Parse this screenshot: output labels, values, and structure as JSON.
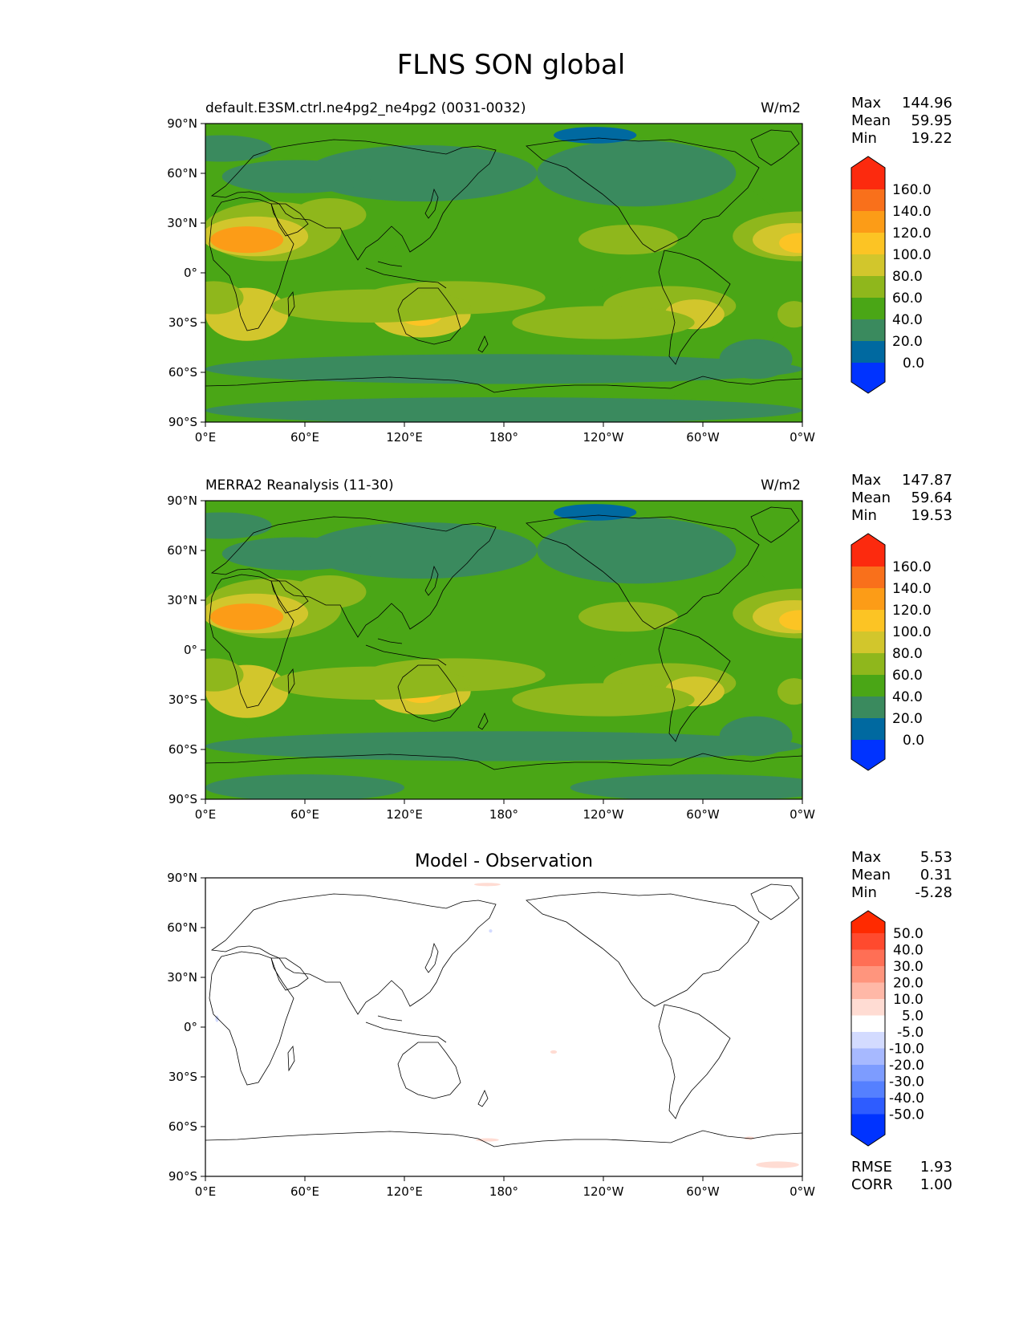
{
  "title": "FLNS SON global",
  "colors": {
    "main_levels": [
      "#0033ff",
      "#0069a0",
      "#3a8a5e",
      "#4aa616",
      "#8fb71c",
      "#d2c62c",
      "#fcc424",
      "#fc9c17",
      "#f9701b",
      "#fc2a0e"
    ],
    "diff_levels": [
      "#0033ff",
      "#2e5cff",
      "#5580ff",
      "#7d9cff",
      "#a7b9ff",
      "#d3dbff",
      "#ffffff",
      "#ffdcd3",
      "#ffb8a7",
      "#ff957d",
      "#ff6f55",
      "#ff4a2e",
      "#ff2a00"
    ],
    "coast": "#000000"
  },
  "x_ticks": [
    "0°E",
    "60°E",
    "120°E",
    "180°",
    "120°W",
    "60°W",
    "0°W"
  ],
  "y_ticks": [
    "90°N",
    "60°N",
    "30°N",
    "0°",
    "30°S",
    "60°S",
    "90°S"
  ],
  "panels": {
    "test": {
      "left_title": "default.E3SM.ctrl.ne4pg2_ne4pg2 (0031-0032)",
      "units": "W/m2",
      "stats": {
        "max_label": "Max",
        "max": "144.96",
        "mean_label": "Mean",
        "mean": "59.95",
        "min_label": "Min",
        "min": "19.22"
      },
      "cbar_labels": [
        "160.0",
        "140.0",
        "120.0",
        "100.0",
        "80.0",
        "60.0",
        "40.0",
        "20.0",
        "0.0"
      ]
    },
    "ref": {
      "left_title": "MERRA2 Reanalysis (11-30)",
      "units": "W/m2",
      "stats": {
        "max_label": "Max",
        "max": "147.87",
        "mean_label": "Mean",
        "mean": "59.64",
        "min_label": "Min",
        "min": "19.53"
      },
      "cbar_labels": [
        "160.0",
        "140.0",
        "120.0",
        "100.0",
        "80.0",
        "60.0",
        "40.0",
        "20.0",
        "0.0"
      ]
    },
    "diff": {
      "center_title": "Model - Observation",
      "stats": {
        "max_label": "Max",
        "max": "5.53",
        "mean_label": "Mean",
        "mean": "0.31",
        "min_label": "Min",
        "min": "-5.28"
      },
      "cbar_labels": [
        "50.0",
        "40.0",
        "30.0",
        "20.0",
        "10.0",
        "5.0",
        "-5.0",
        "-10.0",
        "-20.0",
        "-30.0",
        "-40.0",
        "-50.0"
      ],
      "rmse_label": "RMSE",
      "rmse": "1.93",
      "corr_label": "CORR",
      "corr": "1.00"
    }
  },
  "chart_data": [
    {
      "type": "heatmap",
      "panel": "test",
      "title": "default.E3SM.ctrl.ne4pg2_ne4pg2 (0031-0032)",
      "variable": "FLNS",
      "season": "SON",
      "units": "W/m2",
      "xlim": [
        0,
        360
      ],
      "ylim": [
        -90,
        90
      ],
      "contour_levels": [
        0,
        20,
        40,
        60,
        80,
        100,
        120,
        140,
        160
      ],
      "blobs": [
        {
          "lon": 180,
          "lat": 0,
          "rlon": 180,
          "rlat": 90,
          "value": 50
        },
        {
          "lon": 180,
          "lat": 5,
          "rlon": 75,
          "rlat": 22,
          "value": 50
        },
        {
          "lon": 130,
          "lat": 60,
          "rlon": 70,
          "rlat": 17,
          "value": 35
        },
        {
          "lon": 55,
          "lat": 58,
          "rlon": 45,
          "rlat": 10,
          "value": 35
        },
        {
          "lon": 10,
          "lat": 75,
          "rlon": 30,
          "rlat": 8,
          "value": 35
        },
        {
          "lon": 260,
          "lat": 60,
          "rlon": 60,
          "rlat": 20,
          "value": 35
        },
        {
          "lon": 180,
          "lat": -58,
          "rlon": 180,
          "rlat": 9,
          "value": 35
        },
        {
          "lon": 180,
          "lat": -83,
          "rlon": 180,
          "rlat": 8,
          "value": 35
        },
        {
          "lon": 332,
          "lat": -52,
          "rlon": 22,
          "rlat": 12,
          "value": 30
        },
        {
          "lon": 235,
          "lat": 83,
          "rlon": 25,
          "rlat": 5,
          "value": 18
        },
        {
          "lon": 40,
          "lat": 25,
          "rlon": 42,
          "rlat": 18,
          "value": 78
        },
        {
          "lon": 30,
          "lat": 22,
          "rlon": 32,
          "rlat": 12,
          "value": 98
        },
        {
          "lon": 25,
          "lat": 20,
          "rlon": 22,
          "rlat": 8,
          "value": 125
        },
        {
          "lon": 360,
          "lat": 22,
          "rlon": 42,
          "rlat": 15,
          "value": 72
        },
        {
          "lon": 355,
          "lat": 20,
          "rlon": 25,
          "rlat": 10,
          "value": 90
        },
        {
          "lon": 358,
          "lat": 18,
          "rlon": 12,
          "rlat": 6,
          "value": 105
        },
        {
          "lon": 75,
          "lat": 35,
          "rlon": 22,
          "rlat": 10,
          "value": 68
        },
        {
          "lon": 255,
          "lat": 20,
          "rlon": 30,
          "rlat": 9,
          "value": 68
        },
        {
          "lon": 25,
          "lat": -25,
          "rlon": 25,
          "rlat": 16,
          "value": 80
        },
        {
          "lon": 5,
          "lat": -15,
          "rlon": 18,
          "rlat": 10,
          "value": 70
        },
        {
          "lon": 130,
          "lat": -25,
          "rlon": 30,
          "rlat": 14,
          "value": 85
        },
        {
          "lon": 130,
          "lat": -25,
          "rlon": 13,
          "rlat": 7,
          "value": 100
        },
        {
          "lon": 150,
          "lat": -15,
          "rlon": 55,
          "rlat": 10,
          "value": 64
        },
        {
          "lon": 100,
          "lat": -20,
          "rlon": 60,
          "rlat": 10,
          "value": 62
        },
        {
          "lon": 280,
          "lat": -20,
          "rlon": 40,
          "rlat": 12,
          "value": 64
        },
        {
          "lon": 295,
          "lat": -25,
          "rlon": 18,
          "rlat": 9,
          "value": 84
        },
        {
          "lon": 240,
          "lat": -30,
          "rlon": 55,
          "rlat": 10,
          "value": 62
        },
        {
          "lon": 355,
          "lat": -25,
          "rlon": 10,
          "rlat": 8,
          "value": 78
        }
      ]
    },
    {
      "type": "heatmap",
      "panel": "ref",
      "title": "MERRA2 Reanalysis (11-30)",
      "variable": "FLNS",
      "season": "SON",
      "units": "W/m2",
      "xlim": [
        0,
        360
      ],
      "ylim": [
        -90,
        90
      ],
      "contour_levels": [
        0,
        20,
        40,
        60,
        80,
        100,
        120,
        140,
        160
      ],
      "blobs": [
        {
          "lon": 180,
          "lat": 0,
          "rlon": 180,
          "rlat": 90,
          "value": 50
        },
        {
          "lon": 180,
          "lat": 5,
          "rlon": 75,
          "rlat": 22,
          "value": 50
        },
        {
          "lon": 130,
          "lat": 60,
          "rlon": 70,
          "rlat": 17,
          "value": 35
        },
        {
          "lon": 55,
          "lat": 58,
          "rlon": 45,
          "rlat": 10,
          "value": 35
        },
        {
          "lon": 10,
          "lat": 75,
          "rlon": 30,
          "rlat": 8,
          "value": 35
        },
        {
          "lon": 260,
          "lat": 60,
          "rlon": 60,
          "rlat": 20,
          "value": 35
        },
        {
          "lon": 180,
          "lat": -58,
          "rlon": 180,
          "rlat": 9,
          "value": 35
        },
        {
          "lon": 60,
          "lat": -83,
          "rlon": 60,
          "rlat": 8,
          "value": 35
        },
        {
          "lon": 300,
          "lat": -83,
          "rlon": 80,
          "rlat": 8,
          "value": 35
        },
        {
          "lon": 332,
          "lat": -52,
          "rlon": 22,
          "rlat": 12,
          "value": 30
        },
        {
          "lon": 235,
          "lat": 83,
          "rlon": 25,
          "rlat": 5,
          "value": 18
        },
        {
          "lon": 40,
          "lat": 25,
          "rlon": 42,
          "rlat": 18,
          "value": 78
        },
        {
          "lon": 30,
          "lat": 22,
          "rlon": 32,
          "rlat": 12,
          "value": 98
        },
        {
          "lon": 25,
          "lat": 20,
          "rlon": 22,
          "rlat": 8,
          "value": 125
        },
        {
          "lon": 360,
          "lat": 22,
          "rlon": 42,
          "rlat": 15,
          "value": 72
        },
        {
          "lon": 355,
          "lat": 20,
          "rlon": 25,
          "rlat": 10,
          "value": 90
        },
        {
          "lon": 358,
          "lat": 18,
          "rlon": 12,
          "rlat": 6,
          "value": 110
        },
        {
          "lon": 75,
          "lat": 35,
          "rlon": 22,
          "rlat": 10,
          "value": 68
        },
        {
          "lon": 255,
          "lat": 20,
          "rlon": 30,
          "rlat": 9,
          "value": 68
        },
        {
          "lon": 25,
          "lat": -25,
          "rlon": 25,
          "rlat": 16,
          "value": 80
        },
        {
          "lon": 5,
          "lat": -15,
          "rlon": 18,
          "rlat": 10,
          "value": 70
        },
        {
          "lon": 130,
          "lat": -25,
          "rlon": 30,
          "rlat": 14,
          "value": 85
        },
        {
          "lon": 130,
          "lat": -25,
          "rlon": 13,
          "rlat": 7,
          "value": 100
        },
        {
          "lon": 150,
          "lat": -15,
          "rlon": 55,
          "rlat": 10,
          "value": 64
        },
        {
          "lon": 100,
          "lat": -20,
          "rlon": 60,
          "rlat": 10,
          "value": 62
        },
        {
          "lon": 280,
          "lat": -20,
          "rlon": 40,
          "rlat": 12,
          "value": 64
        },
        {
          "lon": 295,
          "lat": -25,
          "rlon": 18,
          "rlat": 9,
          "value": 84
        },
        {
          "lon": 240,
          "lat": -30,
          "rlon": 55,
          "rlat": 10,
          "value": 62
        },
        {
          "lon": 355,
          "lat": -25,
          "rlon": 10,
          "rlat": 8,
          "value": 78
        }
      ]
    },
    {
      "type": "heatmap",
      "panel": "diff",
      "title": "Model - Observation",
      "units": "W/m2",
      "xlim": [
        0,
        360
      ],
      "ylim": [
        -90,
        90
      ],
      "contour_levels": [
        -50,
        -40,
        -30,
        -20,
        -10,
        -5,
        5,
        10,
        20,
        30,
        40,
        50
      ],
      "blobs": [
        {
          "lon": 170,
          "lat": 86,
          "rlon": 8,
          "rlat": 1,
          "value": 6
        },
        {
          "lon": 172,
          "lat": 58,
          "rlon": 1,
          "rlat": 1,
          "value": -6
        },
        {
          "lon": 7,
          "lat": 5,
          "rlon": 1,
          "rlat": 2,
          "value": -6
        },
        {
          "lon": 210,
          "lat": -15,
          "rlon": 2,
          "rlat": 1,
          "value": 6
        },
        {
          "lon": 170,
          "lat": -68,
          "rlon": 7,
          "rlat": 1,
          "value": 6
        },
        {
          "lon": 328,
          "lat": -67,
          "rlon": 3,
          "rlat": 1,
          "value": 6
        },
        {
          "lon": 345,
          "lat": -83,
          "rlon": 13,
          "rlat": 2,
          "value": 6
        }
      ]
    }
  ]
}
